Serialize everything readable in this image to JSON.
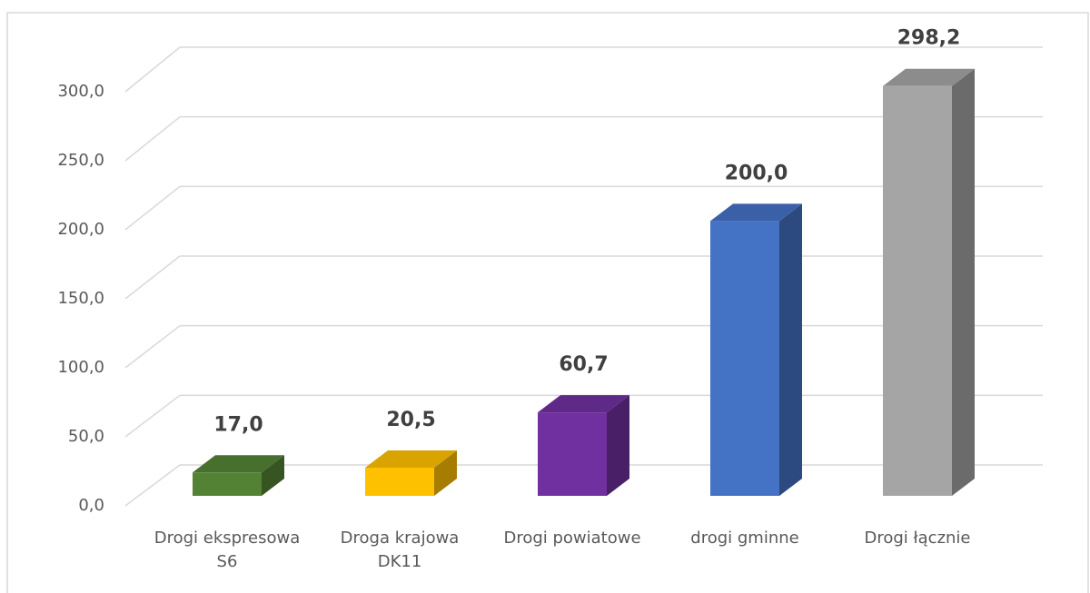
{
  "chart_data": {
    "type": "bar3d",
    "categories": [
      "Drogi ekspresowa S6",
      "Droga krajowa DK11",
      "Drogi powiatowe",
      "drogi gminne",
      "Drogi łącznie"
    ],
    "values": [
      17.0,
      20.5,
      60.7,
      200.0,
      298.2
    ],
    "value_labels": [
      "17,0",
      "20,5",
      "60,7",
      "200,0",
      "298,2"
    ],
    "colors": [
      "#548235",
      "#ffc000",
      "#7030a0",
      "#4472c4",
      "#a5a5a5"
    ],
    "ylim": [
      0,
      300
    ],
    "yticks": [
      {
        "value": 0,
        "label": "0,0"
      },
      {
        "value": 50,
        "label": "50,0"
      },
      {
        "value": 100,
        "label": "100,0"
      },
      {
        "value": 150,
        "label": "150,0"
      },
      {
        "value": 200,
        "label": "200,0"
      },
      {
        "value": 250,
        "label": "250,0"
      },
      {
        "value": 300,
        "label": "300,0"
      }
    ],
    "grid": true
  }
}
